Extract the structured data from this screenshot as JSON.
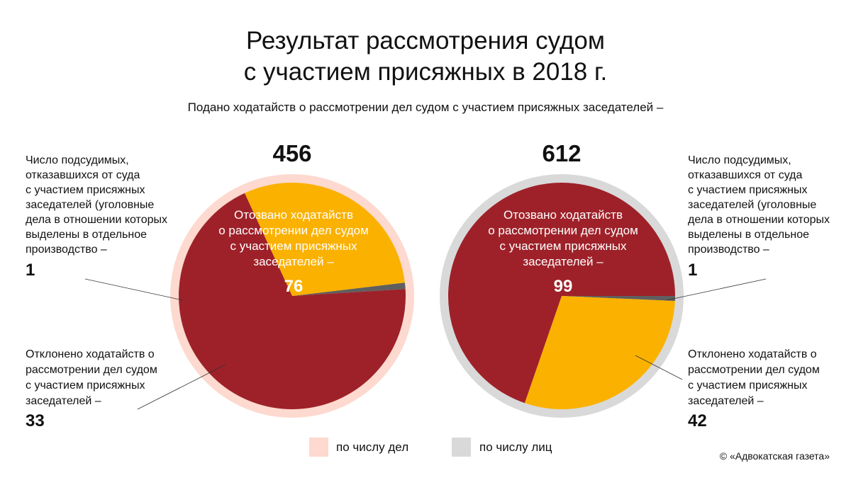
{
  "title": {
    "line1": "Результат рассмотрения судом",
    "line2": "с участием присяжных в 2018 г."
  },
  "subtitle": "Подано ходатайств о рассмотрении дел судом с участием присяжных заседателей –",
  "colors": {
    "withdrawn": "#9e2129",
    "rejected": "#fbb100",
    "defendants_refused": "#5f5f5f",
    "ring_by_cases": "#fdd9cf",
    "ring_by_persons": "#d9d9d9"
  },
  "chart_data": [
    {
      "type": "pie",
      "id": "by_cases",
      "total": 456,
      "total_label": "456",
      "ring": "по числу дел",
      "slices": [
        {
          "key": "withdrawn",
          "label": "Отозвано ходатайств о рассмотрении дел судом с участием присяжных заседателей –",
          "value": 76,
          "display": "76"
        },
        {
          "key": "defendants_refused",
          "label": "Число подсудимых, отказавшихся от суда с участием присяжных заседателей (уголовные дела в отношении которых выделены в отдельное производство –",
          "value": 1,
          "display": "1"
        },
        {
          "key": "rejected",
          "label": "Отклонено ходатайств о рассмотрении дел судом с участием присяжных заседателей –",
          "value": 33,
          "display": "33"
        }
      ]
    },
    {
      "type": "pie",
      "id": "by_persons",
      "total": 612,
      "total_label": "612",
      "ring": "по числу лиц",
      "slices": [
        {
          "key": "withdrawn",
          "label": "Отозвано ходатайств о рассмотрении дел судом с участием присяжных заседателей –",
          "value": 99,
          "display": "99"
        },
        {
          "key": "defendants_refused",
          "label": "Число подсудимых, отказавшихся от суда с участием присяжных заседателей (уголовные дела в отношении которых выделены в отдельное производство –",
          "value": 1,
          "display": "1"
        },
        {
          "key": "rejected",
          "label": "Отклонено ходатайств о рассмотрении дел судом с участием присяжных заседателей –",
          "value": 42,
          "display": "42"
        }
      ]
    }
  ],
  "annotations": {
    "left_refused_lines": [
      "Число подсудимых,",
      "отказавшихся от суда",
      "с участием присяжных",
      "заседателей (уголовные",
      "дела в отношении которых",
      "выделены в отдельное",
      "производство –"
    ],
    "left_refused_value": "1",
    "left_rejected_lines": [
      "Отклонено ходатайств о",
      "рассмотрении дел судом",
      "с участием присяжных",
      "заседателей –"
    ],
    "left_rejected_value": "33",
    "right_refused_lines": [
      "Число подсудимых,",
      "отказавшихся от суда",
      "с участием присяжных",
      "заседателей (уголовные",
      "дела в отношении которых",
      "выделены в отдельное",
      "производство –"
    ],
    "right_refused_value": "1",
    "right_rejected_lines": [
      "Отклонено ходатайств о",
      "рассмотрении дел судом",
      "с участием присяжных",
      "заседателей –"
    ],
    "right_rejected_value": "42",
    "withdrawn_lines": [
      "Отозвано ходатайств",
      "о рассмотрении дел судом",
      "с участием присяжных",
      "заседателей –"
    ]
  },
  "legend": [
    {
      "label": "по числу дел",
      "color": "#fdd9cf"
    },
    {
      "label": "по числу лиц",
      "color": "#d9d9d9"
    }
  ],
  "copyright": "© «Адвокатская газета»"
}
